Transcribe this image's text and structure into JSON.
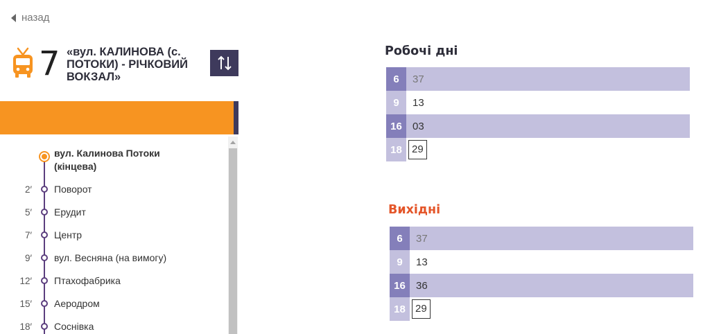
{
  "nav": {
    "back_label": "назад"
  },
  "route": {
    "number": "7",
    "name": "«вул. КАЛИНОВА (с. ПОТОКИ) - РІЧКОВИЙ ВОКЗАЛ»"
  },
  "colors": {
    "accent": "#f79421",
    "dark": "#3e3a5c",
    "line": "#5b3e7e",
    "weekend_title": "#e4562a",
    "hour_dark": "#847fba",
    "row_light": "#c3c0de"
  },
  "stops": [
    {
      "time": "",
      "name": "вул. Калинова Потоки (кінцева)"
    },
    {
      "time": "2′",
      "name": "Поворот"
    },
    {
      "time": "5′",
      "name": "Ерудит"
    },
    {
      "time": "7′",
      "name": "Центр"
    },
    {
      "time": "9′",
      "name": "вул. Весняна (на вимогу)"
    },
    {
      "time": "12′",
      "name": "Птахофабрика"
    },
    {
      "time": "15′",
      "name": "Аеродром"
    },
    {
      "time": "18′",
      "name": "Соснівка"
    }
  ],
  "schedules": {
    "workdays": {
      "title": "Робочі дні",
      "rows": [
        {
          "hour": "6",
          "minutes": "37"
        },
        {
          "hour": "9",
          "minutes": "13"
        },
        {
          "hour": "16",
          "minutes": "03"
        },
        {
          "hour": "18",
          "minutes": "29"
        }
      ]
    },
    "weekends": {
      "title": "Вихідні",
      "rows": [
        {
          "hour": "6",
          "minutes": "37"
        },
        {
          "hour": "9",
          "minutes": "13"
        },
        {
          "hour": "16",
          "minutes": "36"
        },
        {
          "hour": "18",
          "minutes": "29"
        }
      ]
    }
  }
}
